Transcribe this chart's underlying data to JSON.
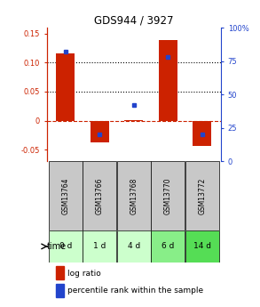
{
  "title": "GDS944 / 3927",
  "samples": [
    "GSM13764",
    "GSM13766",
    "GSM13768",
    "GSM13770",
    "GSM13772"
  ],
  "time_labels": [
    "0 d",
    "1 d",
    "4 d",
    "6 d",
    "14 d"
  ],
  "log_ratio": [
    0.115,
    -0.038,
    0.001,
    0.138,
    -0.043
  ],
  "percentile": [
    0.82,
    0.2,
    0.42,
    0.78,
    0.2
  ],
  "bar_color": "#cc2200",
  "dot_color": "#2244cc",
  "ylim_left": [
    -0.07,
    0.16
  ],
  "ylim_right": [
    0,
    1.0
  ],
  "yticks_left": [
    -0.05,
    0.0,
    0.05,
    0.1,
    0.15
  ],
  "yticks_right": [
    0.0,
    0.25,
    0.5,
    0.75,
    1.0
  ],
  "ytick_labels_right": [
    "0",
    "25",
    "50",
    "75",
    "100%"
  ],
  "ytick_labels_left": [
    "-0.05",
    "0",
    "0.05",
    "0.10",
    "0.15"
  ],
  "hline_y": [
    0.05,
    0.1
  ],
  "zero_line_y": 0.0,
  "bg_color": "#ffffff",
  "sample_header_color": "#c8c8c8",
  "time_colors": [
    "#ccffcc",
    "#ccffcc",
    "#ccffcc",
    "#88ee88",
    "#55dd55"
  ],
  "legend_labels": [
    "log ratio",
    "percentile rank within the sample"
  ],
  "bar_width": 0.55
}
